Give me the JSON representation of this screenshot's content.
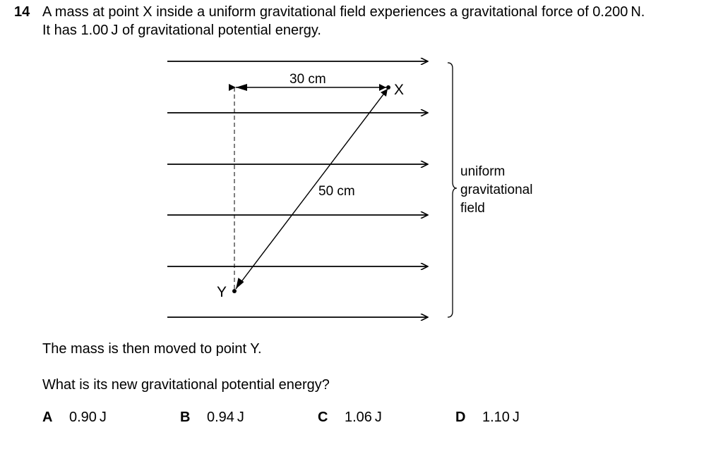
{
  "question": {
    "number": "14",
    "line1": "A mass at point X inside a uniform gravitational field experiences a gravitational force of 0.200 N.",
    "line2": "It has 1.00 J of gravitational potential energy."
  },
  "diagram": {
    "label_horizontal": "30 cm",
    "label_diagonal": "50 cm",
    "point_x": "X",
    "point_y": "Y",
    "field_label": [
      "uniform",
      "gravitational",
      "field"
    ]
  },
  "follow_up": {
    "statement": "The mass is then moved to point Y.",
    "prompt": "What is its new gravitational potential energy?"
  },
  "options": [
    {
      "letter": "A",
      "value": "0.90 J"
    },
    {
      "letter": "B",
      "value": "0.94 J"
    },
    {
      "letter": "C",
      "value": "1.06 J"
    },
    {
      "letter": "D",
      "value": "1.10 J"
    }
  ]
}
